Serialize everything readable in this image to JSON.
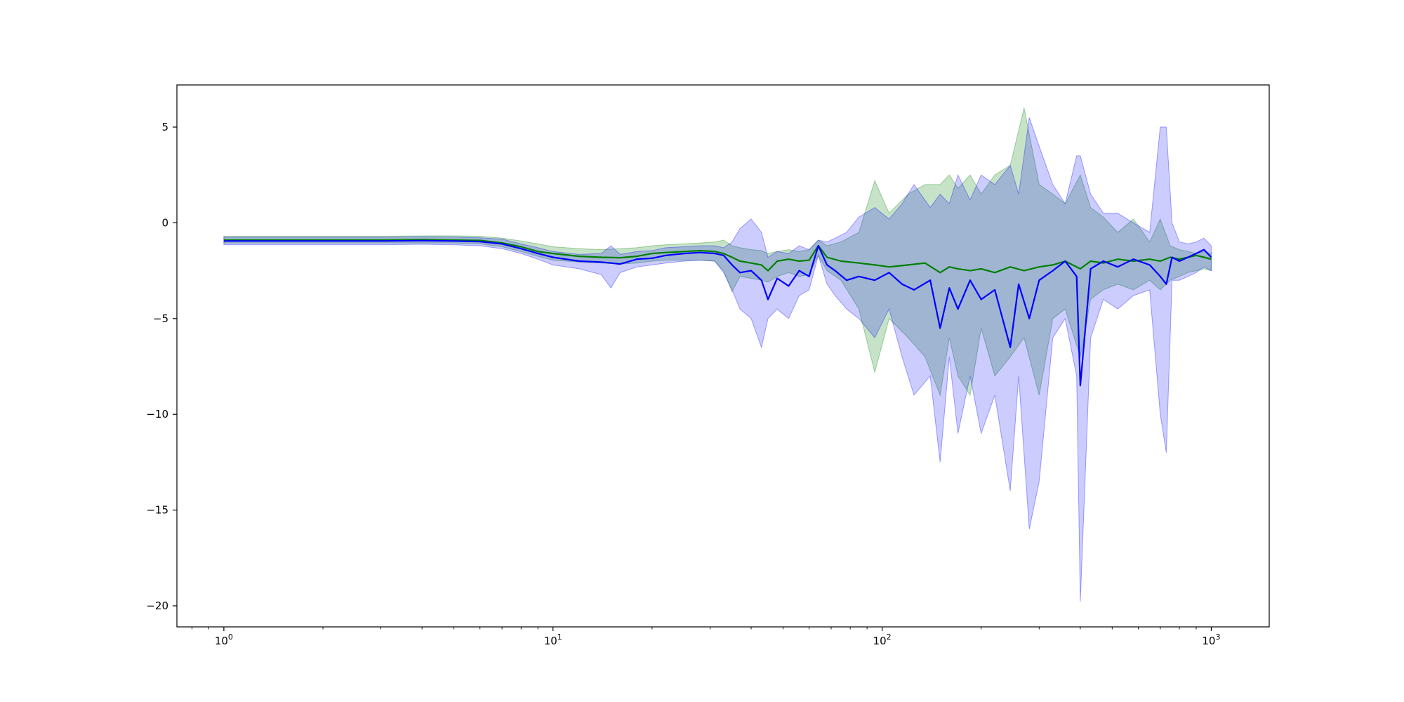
{
  "chart_data": {
    "type": "line",
    "title": "",
    "xlabel": "",
    "ylabel": "",
    "xscale": "log",
    "xlim": [
      0.72,
      1500
    ],
    "ylim": [
      -21.1,
      7.2
    ],
    "grid": false,
    "legend": "none",
    "x_ticks": [
      1,
      10,
      100,
      1000
    ],
    "x_tick_labels": [
      {
        "base": "10",
        "exp": "0"
      },
      {
        "base": "10",
        "exp": "1"
      },
      {
        "base": "10",
        "exp": "2"
      },
      {
        "base": "10",
        "exp": "3"
      }
    ],
    "y_ticks": [
      5,
      0,
      -5,
      -10,
      -15,
      -20
    ],
    "y_tick_labels": [
      "5",
      "0",
      "−5",
      "−10",
      "−15",
      "−20"
    ],
    "series": [
      {
        "color": "#008000",
        "band_color": "#008000",
        "band_opacity": 0.22,
        "x": [
          1,
          2,
          3,
          4,
          5,
          6,
          7,
          8,
          9,
          10,
          12,
          14,
          16,
          18,
          20,
          22,
          25,
          28,
          31,
          33,
          35,
          37,
          40,
          43,
          45,
          48,
          52,
          56,
          60,
          64,
          68,
          75,
          85,
          95,
          105,
          120,
          135,
          150,
          160,
          170,
          185,
          200,
          220,
          245,
          270,
          300,
          330,
          360,
          400,
          430,
          470,
          520,
          580,
          650,
          700,
          750,
          800,
          850,
          900,
          950,
          1000
        ],
        "y": [
          -0.9,
          -0.9,
          -0.9,
          -0.88,
          -0.9,
          -0.92,
          -1.05,
          -1.25,
          -1.5,
          -1.6,
          -1.75,
          -1.8,
          -1.82,
          -1.75,
          -1.6,
          -1.55,
          -1.5,
          -1.45,
          -1.5,
          -1.6,
          -1.8,
          -2.0,
          -2.1,
          -2.2,
          -2.5,
          -2.0,
          -1.9,
          -2.0,
          -1.95,
          -1.2,
          -1.8,
          -2.0,
          -2.1,
          -2.2,
          -2.3,
          -2.2,
          -2.1,
          -2.6,
          -2.3,
          -2.4,
          -2.5,
          -2.4,
          -2.6,
          -2.3,
          -2.5,
          -2.3,
          -2.2,
          -2.0,
          -2.4,
          -2.0,
          -2.1,
          -1.9,
          -2.0,
          -1.9,
          -2.0,
          -1.8,
          -1.9,
          -1.8,
          -1.7,
          -1.8,
          -1.9
        ],
        "lower": [
          -1.05,
          -1.05,
          -1.05,
          -1.05,
          -1.05,
          -1.1,
          -1.25,
          -1.5,
          -1.75,
          -1.95,
          -2.05,
          -2.1,
          -2.15,
          -2.1,
          -2.0,
          -1.95,
          -1.95,
          -1.95,
          -2.0,
          -2.5,
          -3.6,
          -2.8,
          -2.9,
          -3.0,
          -3.1,
          -2.8,
          -2.6,
          -2.8,
          -2.7,
          -1.7,
          -2.5,
          -3.0,
          -4.5,
          -7.8,
          -5.0,
          -6.0,
          -7.0,
          -9.0,
          -6.0,
          -8.0,
          -9.0,
          -5.5,
          -8.0,
          -7.0,
          -6.0,
          -9.0,
          -5.0,
          -4.5,
          -7.0,
          -4.0,
          -3.5,
          -3.2,
          -3.5,
          -3.0,
          -3.5,
          -3.0,
          -2.8,
          -2.6,
          -2.5,
          -2.4,
          -2.5
        ],
        "upper": [
          -0.7,
          -0.7,
          -0.7,
          -0.68,
          -0.68,
          -0.7,
          -0.8,
          -0.95,
          -1.1,
          -1.25,
          -1.35,
          -1.4,
          -1.35,
          -1.3,
          -1.2,
          -1.15,
          -1.1,
          -1.05,
          -1.0,
          -0.9,
          -1.2,
          -1.3,
          -1.4,
          -1.45,
          -1.6,
          -1.5,
          -1.4,
          -1.5,
          -1.4,
          -0.9,
          -1.2,
          -1.0,
          -0.5,
          2.2,
          0.5,
          1.5,
          2.0,
          2.0,
          2.5,
          1.8,
          2.5,
          1.5,
          2.5,
          3.0,
          6.0,
          2.0,
          1.5,
          1.0,
          2.5,
          0.8,
          0.3,
          -0.5,
          0.2,
          -1.0,
          0.2,
          -1.2,
          -1.4,
          -1.5,
          -1.6,
          -1.5,
          -1.6
        ]
      },
      {
        "color": "#0000ff",
        "band_color": "#0000ff",
        "band_opacity": 0.2,
        "x": [
          1,
          2,
          3,
          4,
          5,
          6,
          7,
          8,
          9,
          10,
          12,
          14,
          15,
          16,
          18,
          20,
          22,
          25,
          28,
          31,
          33,
          35,
          37,
          40,
          43,
          45,
          48,
          52,
          56,
          60,
          64,
          68,
          72,
          78,
          85,
          95,
          105,
          115,
          125,
          140,
          150,
          160,
          170,
          185,
          200,
          220,
          245,
          260,
          280,
          300,
          330,
          360,
          390,
          400,
          430,
          470,
          520,
          580,
          650,
          700,
          730,
          760,
          800,
          850,
          900,
          950,
          1000
        ],
        "y": [
          -0.95,
          -0.95,
          -0.95,
          -0.93,
          -0.95,
          -0.98,
          -1.1,
          -1.35,
          -1.6,
          -1.8,
          -2.0,
          -2.05,
          -2.1,
          -2.15,
          -1.9,
          -1.85,
          -1.7,
          -1.6,
          -1.55,
          -1.6,
          -1.7,
          -2.2,
          -2.6,
          -2.5,
          -3.0,
          -4.0,
          -2.9,
          -3.3,
          -2.5,
          -2.8,
          -1.2,
          -2.2,
          -2.5,
          -3.0,
          -2.8,
          -3.0,
          -2.6,
          -3.2,
          -3.5,
          -3.0,
          -5.5,
          -3.4,
          -4.5,
          -3.0,
          -4.0,
          -3.5,
          -6.5,
          -3.2,
          -5.0,
          -3.0,
          -2.5,
          -2.0,
          -2.8,
          -8.5,
          -2.4,
          -2.0,
          -2.3,
          -1.9,
          -2.2,
          -2.8,
          -3.2,
          -1.8,
          -2.0,
          -1.8,
          -1.6,
          -1.4,
          -1.8
        ],
        "lower": [
          -1.15,
          -1.15,
          -1.15,
          -1.12,
          -1.15,
          -1.2,
          -1.35,
          -1.6,
          -1.9,
          -2.2,
          -2.4,
          -2.7,
          -3.4,
          -2.6,
          -2.3,
          -2.2,
          -2.1,
          -2.0,
          -1.95,
          -2.0,
          -2.6,
          -3.5,
          -4.5,
          -5.0,
          -6.5,
          -5.0,
          -4.5,
          -5.0,
          -3.8,
          -3.5,
          -1.7,
          -3.2,
          -3.8,
          -4.5,
          -5.0,
          -6.0,
          -4.5,
          -7.0,
          -9.0,
          -8.0,
          -12.5,
          -7.0,
          -11.0,
          -8.0,
          -11.0,
          -9.0,
          -14.0,
          -8.0,
          -16.0,
          -13.5,
          -6.0,
          -5.0,
          -8.0,
          -19.8,
          -6.0,
          -4.0,
          -4.5,
          -3.8,
          -3.5,
          -10.0,
          -12.0,
          -3.0,
          -3.0,
          -2.8,
          -2.6,
          -2.3,
          -2.5
        ],
        "upper": [
          -0.75,
          -0.75,
          -0.75,
          -0.73,
          -0.74,
          -0.78,
          -0.85,
          -1.1,
          -1.3,
          -1.5,
          -1.65,
          -1.6,
          -1.2,
          -1.65,
          -1.5,
          -1.45,
          -1.3,
          -1.25,
          -1.2,
          -1.2,
          -1.3,
          -1.0,
          -0.3,
          0.2,
          -0.5,
          -1.8,
          -1.5,
          -1.6,
          -1.2,
          -1.4,
          -0.9,
          -1.0,
          -0.8,
          -0.5,
          0.3,
          0.8,
          0.2,
          1.0,
          2.0,
          0.8,
          1.5,
          1.0,
          2.5,
          1.2,
          2.5,
          2.0,
          3.0,
          1.5,
          5.5,
          4.0,
          2.0,
          1.0,
          3.5,
          3.5,
          1.5,
          0.5,
          0.5,
          0.0,
          -0.5,
          5.0,
          5.0,
          0.0,
          -1.0,
          -1.1,
          -1.0,
          -0.8,
          -1.2
        ]
      }
    ]
  }
}
